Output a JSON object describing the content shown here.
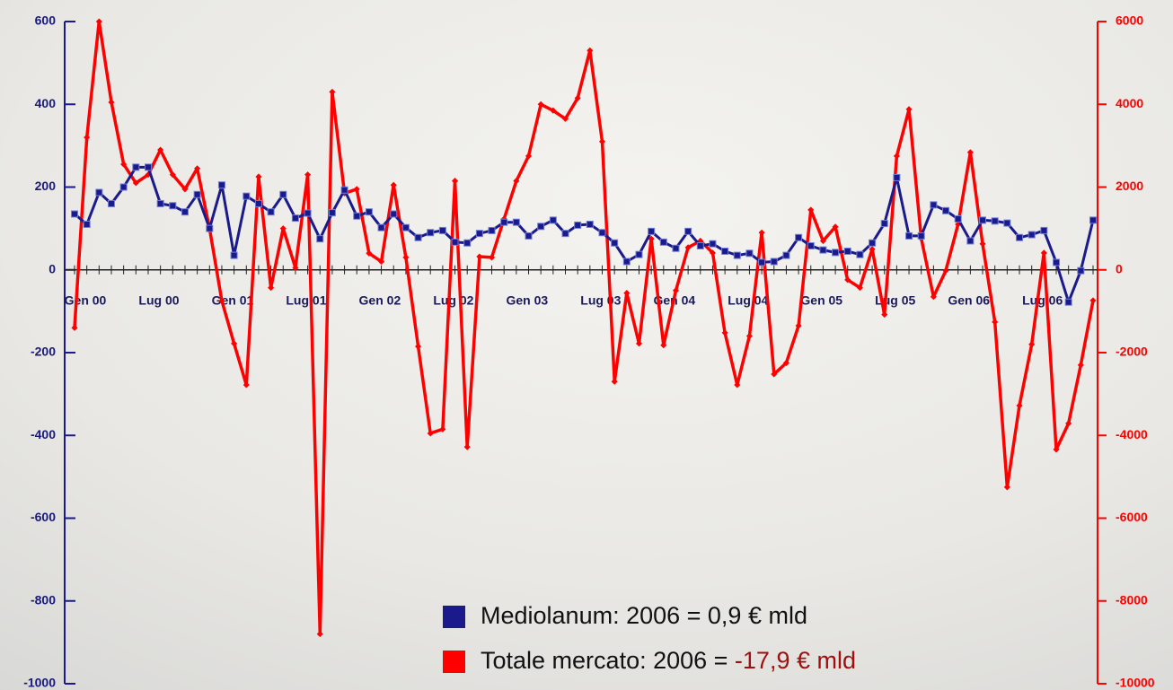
{
  "chart_data": {
    "type": "line",
    "categories": [
      "Gen 00",
      null,
      null,
      null,
      null,
      null,
      "Lug 00",
      null,
      null,
      null,
      null,
      null,
      "Gen 01",
      null,
      null,
      null,
      null,
      null,
      "Lug 01",
      null,
      null,
      null,
      null,
      null,
      "Gen 02",
      null,
      null,
      null,
      null,
      null,
      "Lug 02",
      null,
      null,
      null,
      null,
      null,
      "Gen 03",
      null,
      null,
      null,
      null,
      null,
      "Lug 03",
      null,
      null,
      null,
      null,
      null,
      "Gen 04",
      null,
      null,
      null,
      null,
      null,
      "Lug 04",
      null,
      null,
      null,
      null,
      null,
      "Gen 05",
      null,
      null,
      null,
      null,
      null,
      "Lug 05",
      null,
      null,
      null,
      null,
      null,
      "Gen 06",
      null,
      null,
      null,
      null,
      null,
      "Lug 06",
      null,
      null,
      null,
      null,
      null
    ],
    "series": [
      {
        "name": "Mediolanum: 2006 = 0,9 € mld",
        "color": "#1a1a8c",
        "axis": "y",
        "values": [
          135,
          110,
          187,
          160,
          200,
          248,
          248,
          160,
          155,
          140,
          182,
          100,
          205,
          35,
          178,
          160,
          140,
          182,
          125,
          137,
          75,
          138,
          193,
          130,
          140,
          102,
          135,
          102,
          78,
          90,
          95,
          67,
          65,
          88,
          95,
          115,
          115,
          82,
          105,
          120,
          88,
          108,
          110,
          90,
          65,
          20,
          37,
          93,
          67,
          52,
          93,
          58,
          63,
          45,
          35,
          40,
          18,
          20,
          35,
          78,
          58,
          48,
          42,
          45,
          37,
          65,
          112,
          223,
          82,
          82,
          157,
          143,
          123,
          70,
          120,
          118,
          113,
          78,
          85,
          95,
          18,
          -78,
          -2,
          120
        ]
      },
      {
        "name": "Totale mercato: 2006 = -17,9 € mld",
        "color": "#ff0000",
        "axis": "y2",
        "values": [
          -1400,
          3200,
          6000,
          4050,
          2550,
          2100,
          2300,
          2900,
          2300,
          1950,
          2450,
          1000,
          -750,
          -1780,
          -2780,
          2250,
          -430,
          1000,
          50,
          2300,
          -8800,
          4300,
          1850,
          1950,
          400,
          200,
          2050,
          300,
          -1850,
          -3950,
          -3850,
          2150,
          -4280,
          320,
          300,
          1230,
          2150,
          2750,
          4000,
          3850,
          3650,
          4150,
          5300,
          3100,
          -2700,
          -560,
          -1780,
          750,
          -1820,
          -500,
          540,
          700,
          410,
          -1520,
          -2780,
          -1600,
          900,
          -2520,
          -2250,
          -1350,
          1450,
          700,
          1040,
          -240,
          -430,
          500,
          -1080,
          2750,
          3880,
          760,
          -650,
          -20,
          1100,
          2840,
          630,
          -1260,
          -5250,
          -3280,
          -1800,
          410,
          -4340,
          -3710,
          -2300,
          -740
        ]
      }
    ],
    "ylim": [
      -1000,
      600
    ],
    "yticks": [
      -1000,
      -800,
      -600,
      -400,
      -200,
      0,
      200,
      400,
      600
    ],
    "y2lim": [
      -10000,
      6000
    ],
    "y2ticks": [
      -10000,
      -8000,
      -6000,
      -4000,
      -2000,
      0,
      2000,
      4000,
      6000
    ]
  }
}
